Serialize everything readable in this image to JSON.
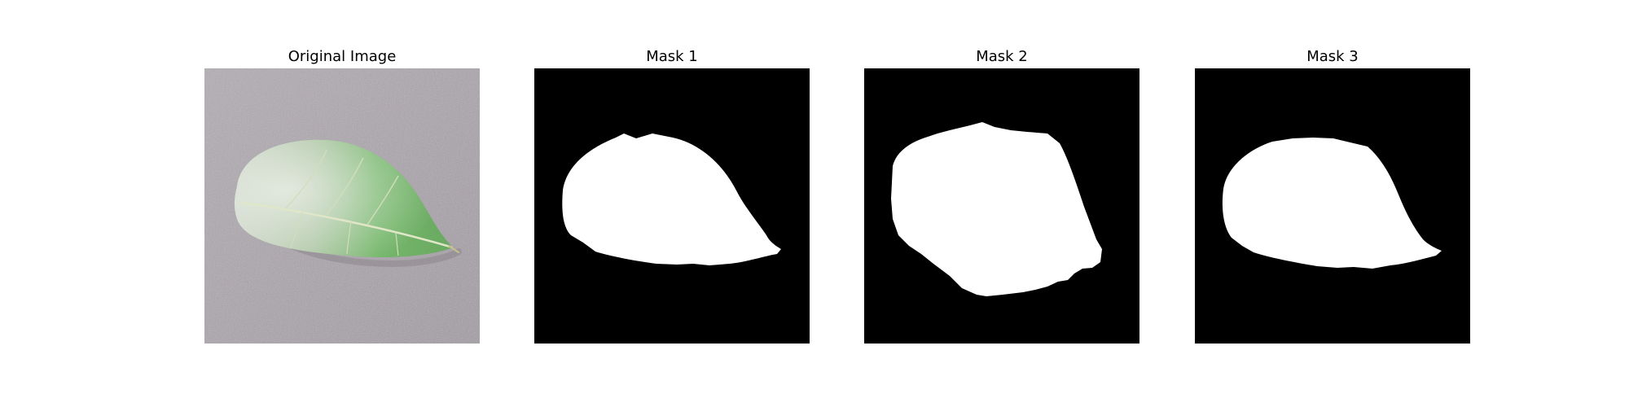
{
  "panels": [
    {
      "title": "Original Image",
      "kind": "photo"
    },
    {
      "title": "Mask 1",
      "kind": "mask"
    },
    {
      "title": "Mask 2",
      "kind": "mask"
    },
    {
      "title": "Mask 3",
      "kind": "mask"
    }
  ],
  "colors": {
    "background": "#ffffff",
    "mask_background": "#000000",
    "mask_foreground": "#ffffff",
    "photo_surface": "#aba5ab",
    "leaf_green": "#3f9a35",
    "leaf_frost": "#c8d2c0"
  }
}
